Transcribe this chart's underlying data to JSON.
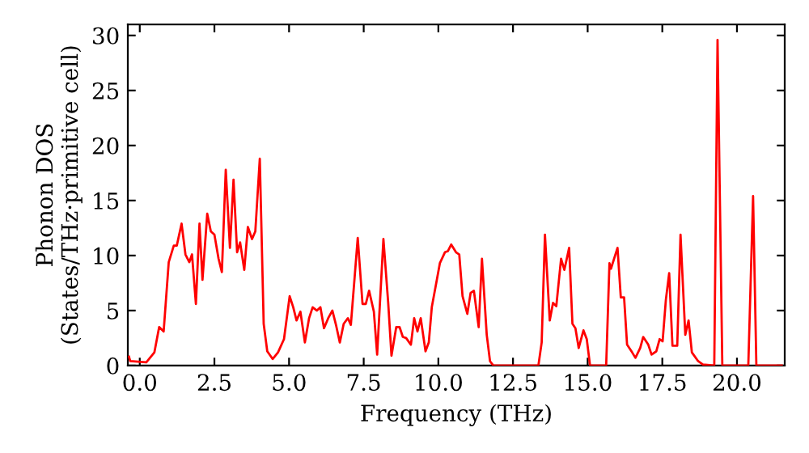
{
  "chart_data": {
    "type": "line",
    "xlabel": "Frequency (THz)",
    "ylabel": "Phonon DOS\n(States/THz·primitive cell)",
    "xlim": [
      -0.4,
      21.6
    ],
    "ylim": [
      0,
      31
    ],
    "xticks": [
      {
        "value": 0,
        "label": "0.0"
      },
      {
        "value": 2.5,
        "label": "2.5"
      },
      {
        "value": 5,
        "label": "5.0"
      },
      {
        "value": 7.5,
        "label": "7.5"
      },
      {
        "value": 10,
        "label": "10.0"
      },
      {
        "value": 12.5,
        "label": "12.5"
      },
      {
        "value": 15,
        "label": "15.0"
      },
      {
        "value": 17.5,
        "label": "17.5"
      },
      {
        "value": 20,
        "label": "20.0"
      }
    ],
    "yticks": [
      0,
      5,
      10,
      15,
      20,
      25,
      30
    ],
    "grid": false,
    "marker": "none",
    "line_style": "solid",
    "series": [
      {
        "color": "#ff0000",
        "x": [
          -0.36,
          -0.32,
          0.22,
          0.49,
          0.65,
          0.8,
          0.97,
          1.14,
          1.24,
          1.4,
          1.53,
          1.66,
          1.75,
          1.88,
          2.0,
          2.1,
          2.26,
          2.38,
          2.5,
          2.64,
          2.75,
          2.88,
          3.02,
          3.14,
          3.26,
          3.36,
          3.5,
          3.62,
          3.76,
          3.87,
          4.02,
          4.15,
          4.27,
          4.45,
          4.63,
          4.83,
          5.02,
          5.14,
          5.25,
          5.38,
          5.53,
          5.67,
          5.79,
          5.93,
          6.05,
          6.17,
          6.31,
          6.45,
          6.58,
          6.7,
          6.83,
          6.97,
          7.07,
          7.3,
          7.46,
          7.57,
          7.68,
          7.84,
          7.95,
          8.16,
          8.32,
          8.43,
          8.59,
          8.7,
          8.81,
          8.92,
          9.08,
          9.19,
          9.3,
          9.41,
          9.57,
          9.68,
          9.78,
          9.95,
          10.05,
          10.22,
          10.32,
          10.43,
          10.59,
          10.7,
          10.81,
          10.97,
          11.08,
          11.19,
          11.35,
          11.46,
          11.62,
          11.73,
          11.84,
          13.35,
          13.46,
          13.57,
          13.73,
          13.84,
          13.95,
          14.11,
          14.22,
          14.38,
          14.49,
          14.59,
          14.7,
          14.86,
          14.97,
          15.08,
          15.62,
          15.73,
          15.78,
          16.0,
          16.11,
          16.22,
          16.32,
          16.49,
          16.6,
          16.76,
          16.86,
          17.03,
          17.14,
          17.3,
          17.41,
          17.51,
          17.62,
          17.73,
          17.84,
          18.0,
          18.11,
          18.27,
          18.38,
          18.49,
          18.7,
          18.86,
          19.24,
          19.35,
          19.51,
          20.38,
          20.54,
          20.65,
          21.5
        ],
        "values": [
          0.8,
          0.4,
          0.3,
          1.2,
          3.5,
          3.1,
          9.4,
          10.9,
          10.9,
          12.9,
          10.1,
          9.4,
          10.1,
          5.6,
          12.9,
          7.8,
          13.8,
          12.2,
          11.9,
          9.7,
          8.5,
          17.8,
          10.7,
          16.9,
          10.3,
          11.2,
          8.7,
          12.6,
          11.5,
          12.2,
          18.8,
          3.8,
          1.3,
          0.6,
          1.2,
          2.4,
          6.3,
          5.3,
          4.1,
          4.9,
          2.1,
          4.3,
          5.3,
          5.0,
          5.3,
          3.4,
          4.3,
          5.0,
          3.6,
          2.1,
          3.8,
          4.3,
          3.7,
          11.6,
          5.6,
          5.6,
          6.8,
          4.9,
          1.0,
          11.5,
          5.7,
          0.9,
          3.5,
          3.5,
          2.6,
          2.5,
          1.9,
          4.3,
          3.1,
          4.3,
          1.3,
          2.1,
          5.3,
          7.8,
          9.3,
          10.3,
          10.4,
          11.0,
          10.3,
          10.1,
          6.3,
          4.7,
          6.6,
          6.8,
          3.5,
          9.7,
          2.8,
          0.4,
          0,
          0,
          2.1,
          11.9,
          4.1,
          5.7,
          5.4,
          9.7,
          8.7,
          10.7,
          3.8,
          3.4,
          1.6,
          3.2,
          2.4,
          0,
          0,
          9.3,
          8.8,
          10.7,
          6.2,
          6.2,
          1.9,
          1.2,
          0.7,
          1.6,
          2.6,
          1.9,
          1.0,
          1.3,
          2.4,
          2.2,
          6.0,
          8.4,
          1.8,
          1.8,
          11.9,
          2.8,
          4.1,
          1.2,
          0.4,
          0.1,
          0,
          29.6,
          0,
          0,
          15.4,
          0,
          0
        ]
      }
    ]
  }
}
